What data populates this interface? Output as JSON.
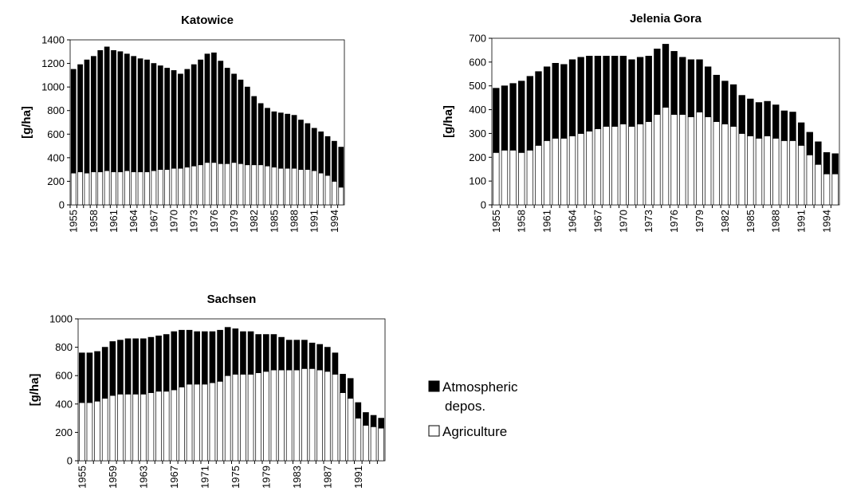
{
  "chart_data": [
    {
      "type": "stacked-bar",
      "title": "Katowice",
      "y_label": "[g/ha]",
      "categories": [
        "1955",
        null,
        null,
        "1958",
        null,
        null,
        "1961",
        null,
        null,
        "1964",
        null,
        null,
        "1967",
        null,
        null,
        "1970",
        null,
        null,
        "1973",
        null,
        null,
        "1976",
        null,
        null,
        "1979",
        null,
        null,
        "1982",
        null,
        null,
        "1985",
        null,
        null,
        "1988",
        null,
        null,
        "1991",
        null,
        null,
        "1994",
        null
      ],
      "series": [
        {
          "name": "Agriculture",
          "color": "#ffffff",
          "values": [
            270,
            280,
            270,
            280,
            280,
            290,
            280,
            280,
            290,
            280,
            280,
            280,
            290,
            300,
            300,
            310,
            310,
            320,
            330,
            340,
            360,
            360,
            350,
            350,
            360,
            350,
            340,
            340,
            340,
            330,
            320,
            310,
            310,
            310,
            300,
            300,
            290,
            270,
            250,
            200,
            150
          ]
        },
        {
          "name": "Atmospheric depos.",
          "color": "#000000",
          "values": [
            880,
            910,
            960,
            980,
            1030,
            1050,
            1030,
            1020,
            990,
            980,
            960,
            950,
            910,
            880,
            860,
            830,
            800,
            830,
            860,
            890,
            920,
            930,
            870,
            810,
            750,
            710,
            660,
            580,
            520,
            490,
            470,
            470,
            460,
            450,
            420,
            390,
            360,
            350,
            330,
            340,
            340
          ]
        }
      ],
      "ylim": [
        0,
        1400
      ],
      "yticks": [
        0,
        200,
        400,
        600,
        800,
        1000,
        1200,
        1400
      ]
    },
    {
      "type": "stacked-bar",
      "title": "Jelenia Gora",
      "y_label": "[g/ha]",
      "categories": [
        "1955",
        null,
        null,
        "1958",
        null,
        null,
        "1961",
        null,
        null,
        "1964",
        null,
        null,
        "1967",
        null,
        null,
        "1970",
        null,
        null,
        "1973",
        null,
        null,
        "1976",
        null,
        null,
        "1979",
        null,
        null,
        "1982",
        null,
        null,
        "1985",
        null,
        null,
        "1988",
        null,
        null,
        "1991",
        null,
        null,
        "1994",
        null
      ],
      "series": [
        {
          "name": "Agriculture",
          "color": "#ffffff",
          "values": [
            220,
            230,
            230,
            220,
            230,
            250,
            270,
            280,
            280,
            290,
            300,
            310,
            320,
            330,
            330,
            340,
            330,
            340,
            350,
            380,
            410,
            380,
            380,
            370,
            390,
            370,
            350,
            340,
            330,
            300,
            290,
            280,
            290,
            280,
            270,
            270,
            250,
            210,
            170,
            130,
            130
          ]
        },
        {
          "name": "Atmospheric depos.",
          "color": "#000000",
          "values": [
            270,
            270,
            280,
            300,
            310,
            310,
            310,
            315,
            310,
            320,
            320,
            315,
            305,
            295,
            295,
            285,
            280,
            280,
            275,
            275,
            265,
            265,
            240,
            240,
            220,
            210,
            195,
            180,
            175,
            160,
            155,
            150,
            145,
            140,
            125,
            120,
            95,
            95,
            95,
            90,
            85
          ]
        }
      ],
      "ylim": [
        0,
        700
      ],
      "yticks": [
        0,
        100,
        200,
        300,
        400,
        500,
        600,
        700
      ]
    },
    {
      "type": "stacked-bar",
      "title": "Sachsen",
      "y_label": "[g/ha]",
      "categories": [
        "1955",
        null,
        null,
        null,
        "1959",
        null,
        null,
        null,
        "1963",
        null,
        null,
        null,
        "1967",
        null,
        null,
        null,
        "1971",
        null,
        null,
        null,
        "1975",
        null,
        null,
        null,
        "1979",
        null,
        null,
        null,
        "1983",
        null,
        null,
        null,
        "1987",
        null,
        null,
        null,
        "1991",
        null,
        null,
        null
      ],
      "series": [
        {
          "name": "Agriculture",
          "color": "#ffffff",
          "values": [
            410,
            410,
            420,
            440,
            460,
            470,
            470,
            470,
            470,
            480,
            490,
            490,
            500,
            520,
            540,
            540,
            540,
            550,
            560,
            600,
            610,
            610,
            610,
            620,
            630,
            640,
            640,
            640,
            640,
            650,
            650,
            640,
            630,
            610,
            480,
            440,
            300,
            250,
            240,
            230
          ]
        },
        {
          "name": "Atmospheric depos.",
          "color": "#000000",
          "values": [
            350,
            350,
            350,
            360,
            380,
            380,
            390,
            390,
            390,
            390,
            390,
            400,
            410,
            400,
            380,
            370,
            370,
            360,
            360,
            340,
            320,
            300,
            300,
            270,
            260,
            250,
            230,
            210,
            210,
            200,
            180,
            180,
            170,
            150,
            130,
            140,
            110,
            90,
            80,
            70
          ]
        }
      ],
      "ylim": [
        0,
        1000
      ],
      "yticks": [
        0,
        200,
        400,
        600,
        800,
        1000
      ],
      "legend": "right"
    }
  ]
}
